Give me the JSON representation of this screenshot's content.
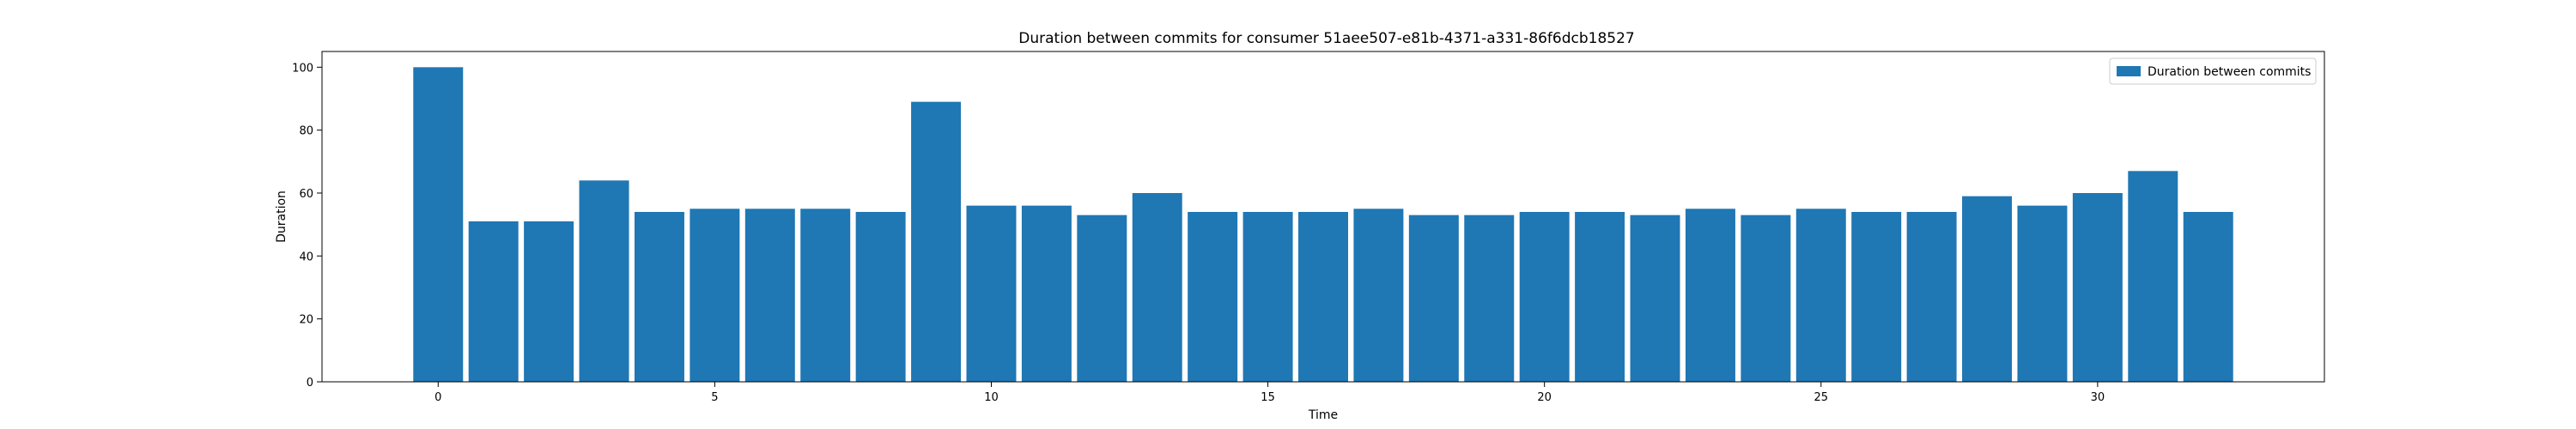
{
  "chart_data": {
    "type": "bar",
    "title": "Duration between commits for consumer 51aee507-e81b-4371-a331-86f6dcb18527",
    "xlabel": "Time",
    "ylabel": "Duration",
    "x": [
      0,
      1,
      2,
      3,
      4,
      5,
      6,
      7,
      8,
      9,
      10,
      11,
      12,
      13,
      14,
      15,
      16,
      17,
      18,
      19,
      20,
      21,
      22,
      23,
      24,
      25,
      26,
      27,
      28,
      29,
      30,
      31,
      32
    ],
    "values": [
      100,
      51,
      51,
      64,
      54,
      55,
      55,
      55,
      54,
      89,
      56,
      56,
      53,
      60,
      54,
      54,
      54,
      55,
      53,
      53,
      54,
      54,
      53,
      55,
      53,
      55,
      54,
      54,
      59,
      56,
      60,
      67,
      54
    ],
    "xlim": [
      -2.1,
      34.1
    ],
    "ylim": [
      0,
      105
    ],
    "xticks": [
      0,
      5,
      10,
      15,
      20,
      25,
      30
    ],
    "yticks": [
      0,
      20,
      40,
      60,
      80,
      100
    ],
    "bar_width": 0.9,
    "grid": false,
    "legend": {
      "position": "upper-right",
      "entries": [
        "Duration between commits"
      ]
    },
    "colors": {
      "bar": "#1f77b4",
      "axes": "#000000",
      "background": "#ffffff"
    }
  }
}
